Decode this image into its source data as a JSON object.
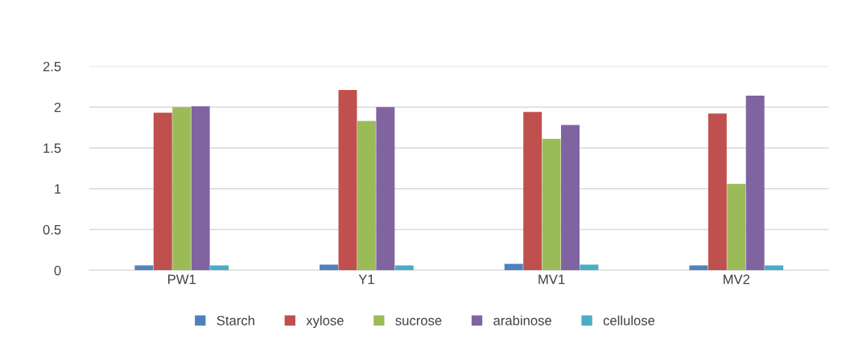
{
  "chart_data": {
    "type": "bar",
    "categories": [
      "PW1",
      "Y1",
      "MV1",
      "MV2"
    ],
    "series": [
      {
        "name": "Starch",
        "color": "#4f81bd",
        "values": [
          0.06,
          0.07,
          0.08,
          0.06
        ]
      },
      {
        "name": "xylose",
        "color": "#c0504d",
        "values": [
          1.93,
          2.21,
          1.94,
          1.92
        ]
      },
      {
        "name": "sucrose",
        "color": "#9bbb59",
        "values": [
          2.0,
          1.83,
          1.61,
          1.06
        ]
      },
      {
        "name": "arabinose",
        "color": "#8064a2",
        "values": [
          2.01,
          2.0,
          1.78,
          2.14
        ]
      },
      {
        "name": "cellulose",
        "color": "#4bacc6",
        "values": [
          0.06,
          0.06,
          0.07,
          0.06
        ]
      }
    ],
    "ylim": [
      0,
      2.5
    ],
    "yticks": [
      0,
      0.5,
      1,
      1.5,
      2,
      2.5
    ],
    "grid": "y",
    "legend": "bottom"
  }
}
